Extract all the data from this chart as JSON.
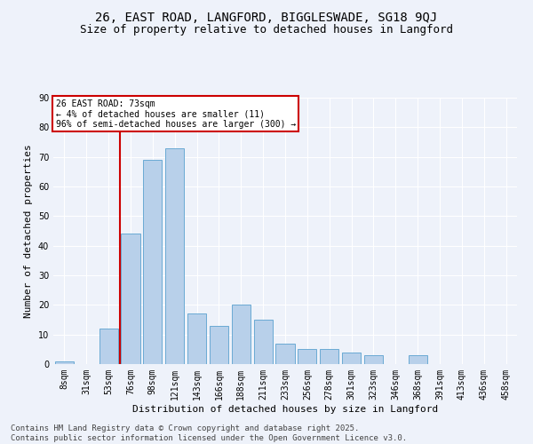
{
  "title1": "26, EAST ROAD, LANGFORD, BIGGLESWADE, SG18 9QJ",
  "title2": "Size of property relative to detached houses in Langford",
  "xlabel": "Distribution of detached houses by size in Langford",
  "ylabel": "Number of detached properties",
  "categories": [
    "8sqm",
    "31sqm",
    "53sqm",
    "76sqm",
    "98sqm",
    "121sqm",
    "143sqm",
    "166sqm",
    "188sqm",
    "211sqm",
    "233sqm",
    "256sqm",
    "278sqm",
    "301sqm",
    "323sqm",
    "346sqm",
    "368sqm",
    "391sqm",
    "413sqm",
    "436sqm",
    "458sqm"
  ],
  "values": [
    1,
    0,
    12,
    44,
    69,
    73,
    17,
    13,
    20,
    15,
    7,
    5,
    5,
    4,
    3,
    0,
    3,
    0,
    0,
    0,
    0
  ],
  "bar_color": "#b8d0ea",
  "bar_edge_color": "#6aaad4",
  "background_color": "#eef2fa",
  "grid_color": "#ffffff",
  "annotation_text": "26 EAST ROAD: 73sqm\n← 4% of detached houses are smaller (11)\n96% of semi-detached houses are larger (300) →",
  "annotation_box_color": "#ffffff",
  "annotation_box_edge": "#cc0000",
  "vline_x_idx": 2,
  "vline_color": "#cc0000",
  "ylim": [
    0,
    90
  ],
  "yticks": [
    0,
    10,
    20,
    30,
    40,
    50,
    60,
    70,
    80,
    90
  ],
  "footnote": "Contains HM Land Registry data © Crown copyright and database right 2025.\nContains public sector information licensed under the Open Government Licence v3.0.",
  "title_fontsize": 10,
  "subtitle_fontsize": 9,
  "axis_label_fontsize": 8,
  "tick_fontsize": 7,
  "footnote_fontsize": 6.5
}
